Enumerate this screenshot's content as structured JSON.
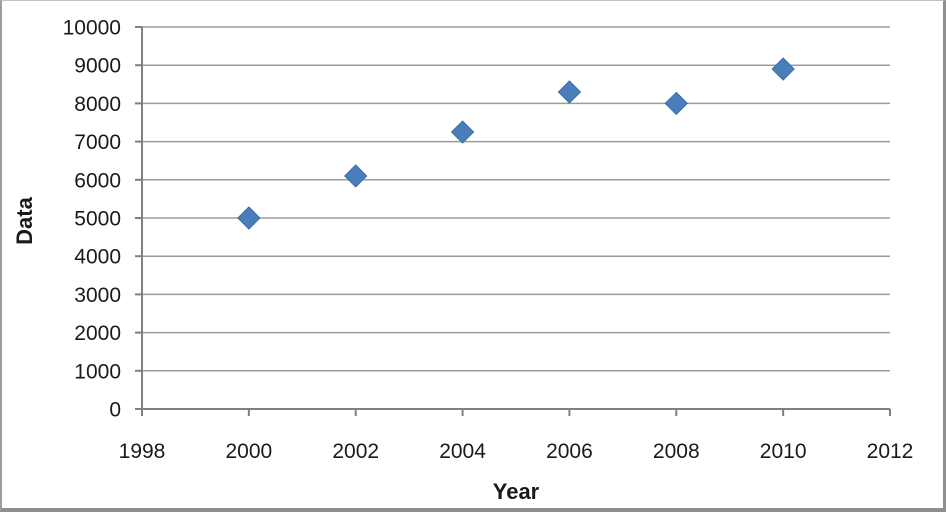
{
  "chart_data": {
    "type": "scatter",
    "title": "",
    "xlabel": "Year",
    "ylabel": "Data",
    "x": [
      2000,
      2002,
      2004,
      2006,
      2008,
      2010
    ],
    "y": [
      5000,
      6100,
      7250,
      8300,
      8000,
      8900
    ],
    "xlim": [
      1998,
      2012
    ],
    "ylim": [
      0,
      10000
    ],
    "x_tick_step": 2,
    "y_tick_step": 1000,
    "x_ticks": [
      "1998",
      "2000",
      "2002",
      "2004",
      "2006",
      "2008",
      "2010",
      "2012"
    ],
    "y_ticks": [
      "0",
      "1000",
      "2000",
      "3000",
      "4000",
      "5000",
      "6000",
      "7000",
      "8000",
      "9000",
      "10000"
    ],
    "grid": "horizontal-only",
    "legend": "none",
    "marker": "diamond",
    "marker_size": 22,
    "colors": {
      "marker_fill": "#4a7ebb",
      "marker_stroke": "#3c6da8",
      "gridline": "#9b9b9b",
      "axis": "#808080",
      "text": "#1a1a1a",
      "background": "#ffffff"
    }
  }
}
